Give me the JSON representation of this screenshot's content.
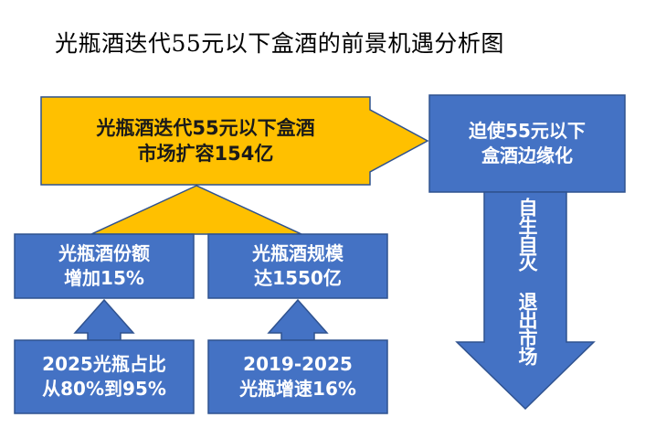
{
  "title": "光瓶酒迭代55元以下盒酒的前景机遇分析图",
  "center_box": {
    "line1": "光瓶酒迭代55元以下盒酒",
    "line2": "市场扩容154亿"
  },
  "right_box": {
    "line1": "迫使55元以下",
    "line2": "盒酒边缘化"
  },
  "down_arrow_text": "自生自灭 退出市场",
  "mid_left": {
    "line1": "光瓶酒份额",
    "line2": "增加15%"
  },
  "mid_right": {
    "line1": "光瓶酒规模",
    "line2": "达1550亿"
  },
  "bottom_left": {
    "line1": "2025光瓶占比",
    "line2": "从80%到95%"
  },
  "bottom_right": {
    "line1": "2019-2025",
    "line2": "光瓶增速16%"
  },
  "colors": {
    "blue_fill": "#4472C4",
    "blue_stroke": "#2F528F",
    "gold_fill": "#FFC000",
    "gold_stroke": "#2F528F"
  }
}
